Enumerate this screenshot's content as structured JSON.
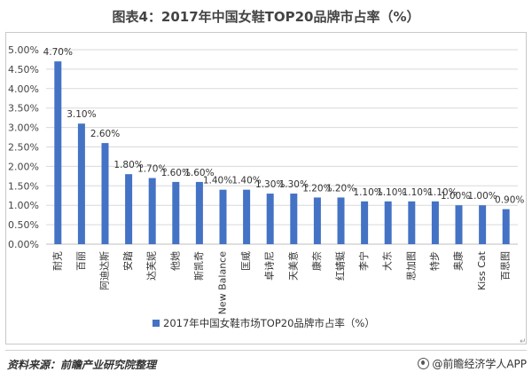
{
  "title": "图表4：2017年中国女鞋TOP20品牌市占率（%）",
  "source": "资料来源：前瞻产业研究院整理",
  "brand": "@前瞻经济学人APP",
  "return_mark": "↵",
  "colors": {
    "bar": "#4472c4",
    "grid": "#d9d9d9",
    "axis": "#bfbfbf"
  },
  "chart_data": {
    "type": "bar",
    "title": "图表4：2017年中国女鞋TOP20品牌市占率（%）",
    "xlabel": "",
    "ylabel": "",
    "ylim": [
      0,
      5
    ],
    "yticks": [
      "0.00%",
      "0.50%",
      "1.00%",
      "1.50%",
      "2.00%",
      "2.50%",
      "3.00%",
      "3.50%",
      "4.00%",
      "4.50%",
      "5.00%"
    ],
    "grid": true,
    "legend_position": "bottom",
    "categories": [
      "耐克",
      "百丽",
      "阿迪达斯",
      "安踏",
      "达芙妮",
      "他她",
      "斯凯奇",
      "New Balance",
      "匡威",
      "卓诗尼",
      "天美意",
      "康奈",
      "红蜻蜓",
      "李宁",
      "大东",
      "思加图",
      "特步",
      "奥康",
      "Kiss Cat",
      "百思图"
    ],
    "series": [
      {
        "name": "2017年中国女鞋市场TOP20品牌市占率（%）",
        "values": [
          4.7,
          3.1,
          2.6,
          1.8,
          1.7,
          1.6,
          1.6,
          1.4,
          1.4,
          1.3,
          1.3,
          1.2,
          1.2,
          1.1,
          1.1,
          1.1,
          1.1,
          1.0,
          1.0,
          0.9
        ],
        "labels": [
          "4.70%",
          "3.10%",
          "2.60%",
          "1.80%",
          "1.70%",
          "1.60%",
          "1.60%",
          "1.40%",
          "1.40%",
          "1.30%",
          "1.30%",
          "1.20%",
          "1.20%",
          "1.10%",
          "1.10%",
          "1.10%",
          "1.10%",
          "1.00%",
          "1.00%",
          "0.90%"
        ]
      }
    ]
  }
}
